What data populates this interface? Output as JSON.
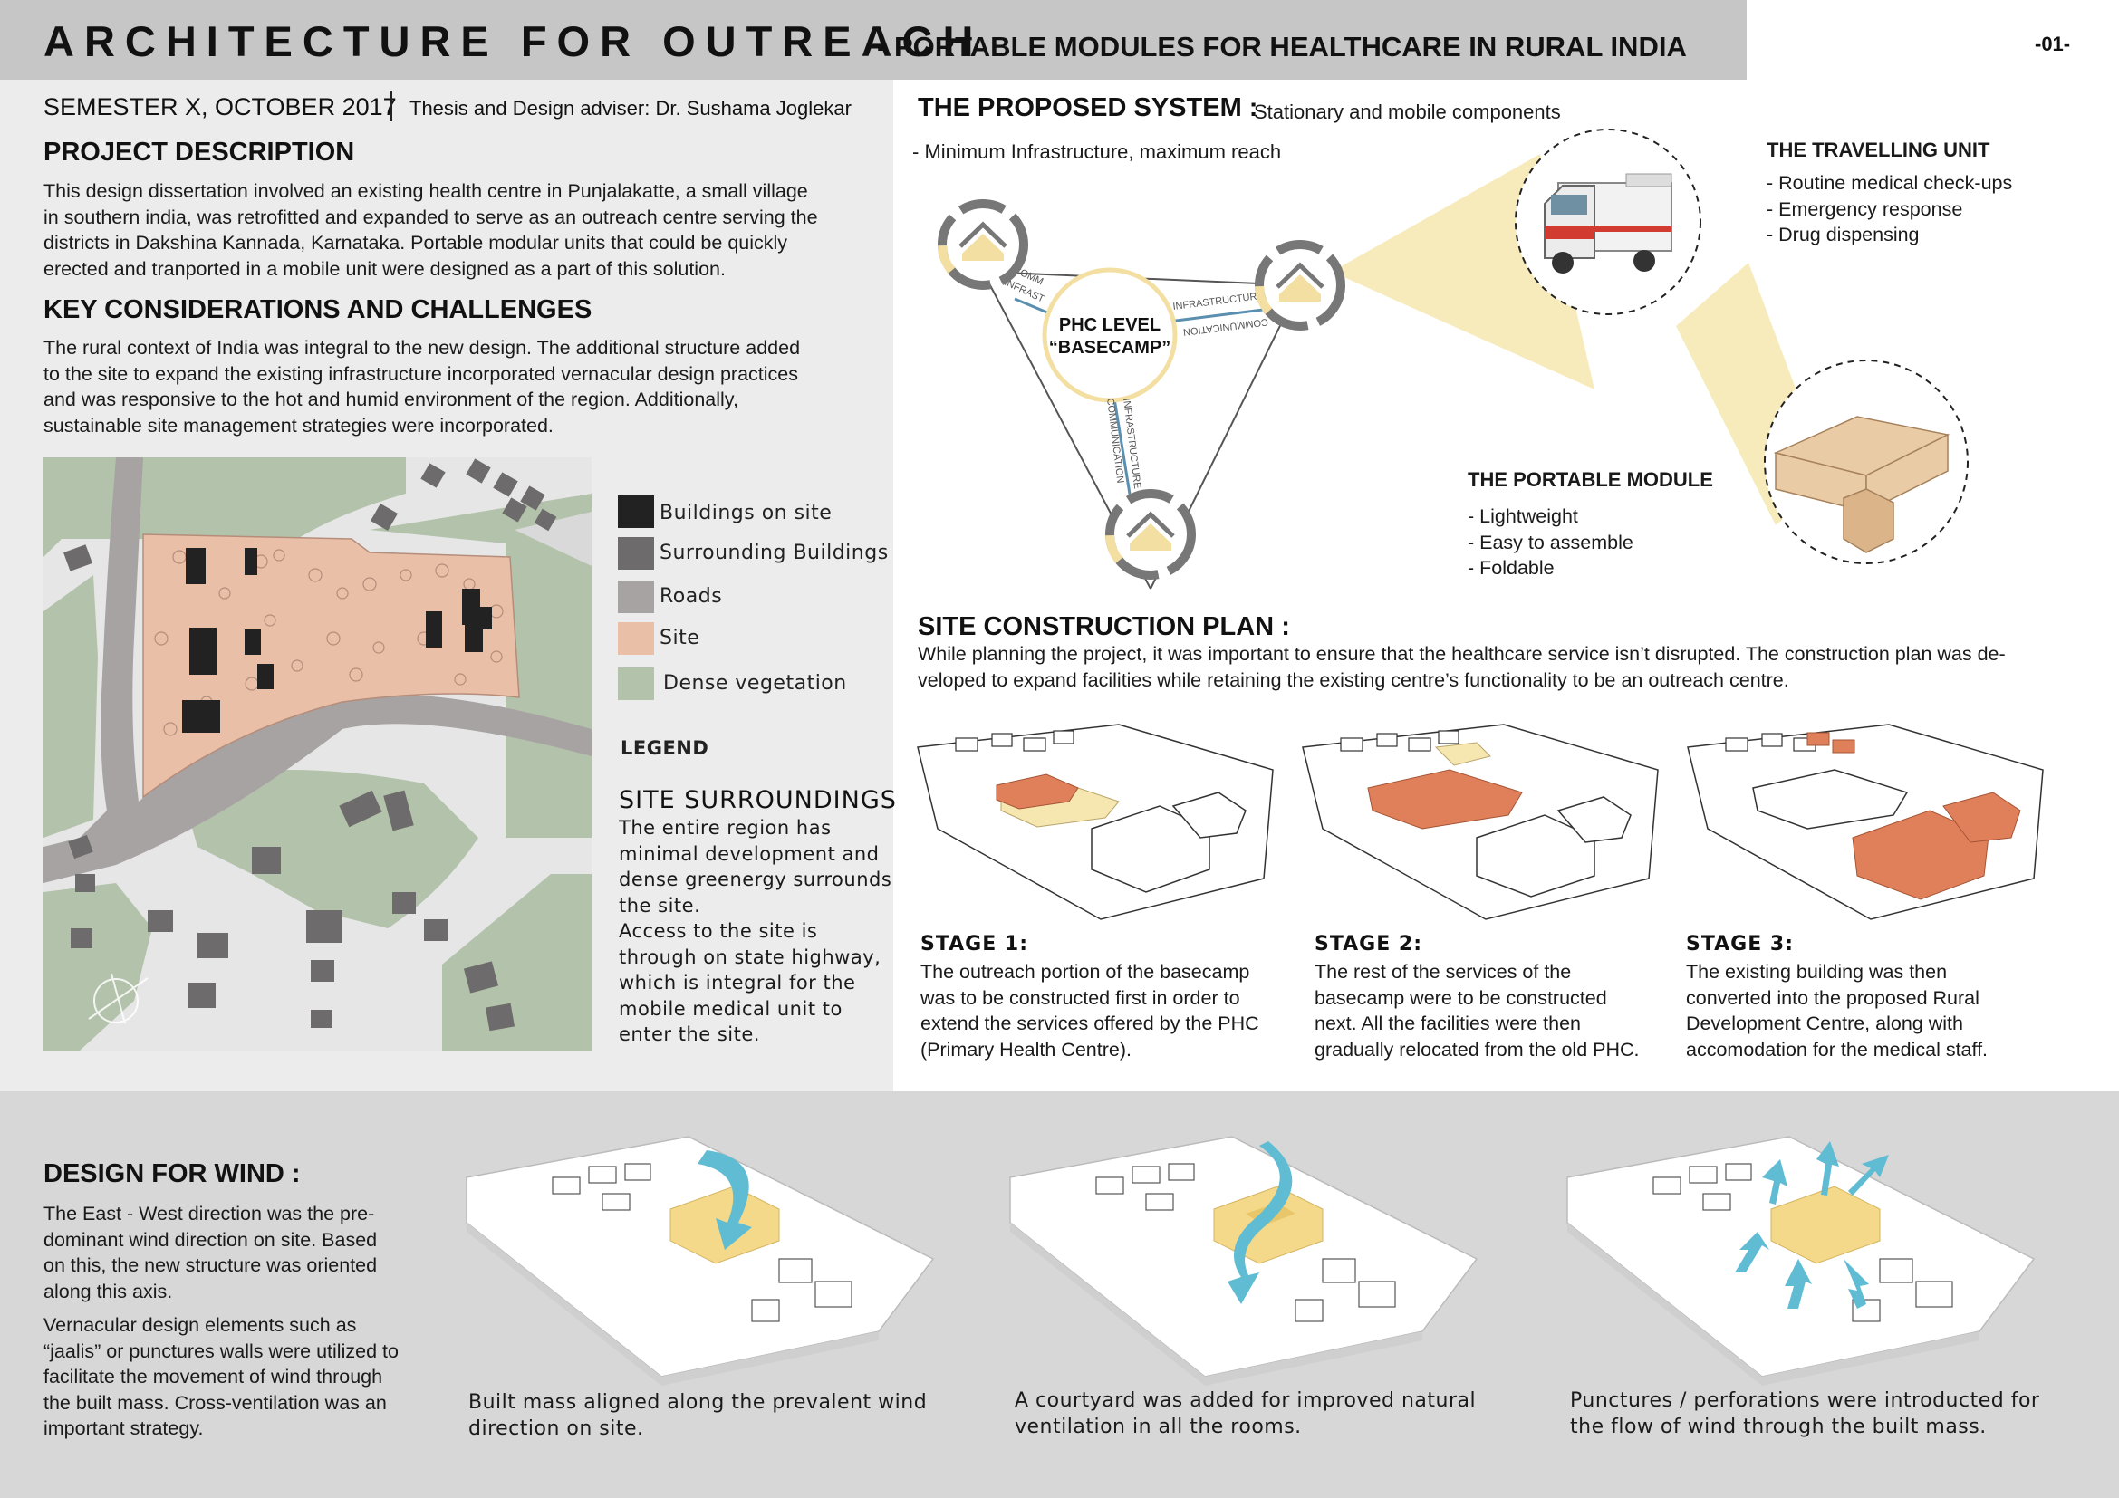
{
  "header": {
    "title_main": "ARCHITECTURE FOR OUTREACH",
    "title_dash": "-",
    "title_sub": "PORTABLE MODULES FOR HEALTHCARE IN RURAL INDIA",
    "page_number": "-01-"
  },
  "meta": {
    "semester": "SEMESTER X, OCTOBER 2017",
    "adviser": "Thesis and Design adviser: Dr. Sushama Joglekar"
  },
  "project_description": {
    "heading": "PROJECT DESCRIPTION",
    "lines": [
      "This design dissertation involved an existing health centre in Punjalakatte, a small village",
      "in southern india, was retrofitted and expanded to serve as an outreach centre serving the",
      "districts in Dakshina Kannada, Karnataka. Portable modular units that could be quickly",
      "erected and tranported in a mobile unit were designed as a part of this solution."
    ]
  },
  "key_considerations": {
    "heading": "KEY CONSIDERATIONS AND CHALLENGES",
    "lines": [
      "The rural context of India was integral to the new design. The additional structure added",
      "to the site to expand the existing infrastructure incorporated vernacular design practices",
      "and was responsive to the hot and humid environment of the region. Additionally,",
      "sustainable site management strategies were incorporated."
    ]
  },
  "legend": {
    "title": "LEGEND",
    "items": [
      {
        "label": "Buildings on site",
        "color": "#222222"
      },
      {
        "label": "Surrounding Buildings",
        "color": "#6d6b6b"
      },
      {
        "label": "Roads",
        "color": "#a8a3a3"
      },
      {
        "label": "Site",
        "color": "#e9bfa8"
      },
      {
        "label": "Dense vegetation",
        "color": "#b3c2aa"
      }
    ]
  },
  "site_surroundings": {
    "heading": "SITE SURROUNDINGS",
    "lines": [
      "The entire region has",
      "minimal development and",
      "dense greenergy surrounds",
      "the site.",
      "Access to the site is",
      "through on state highway,",
      "which is integral for the",
      "mobile medical unit to",
      "enter the site."
    ]
  },
  "proposed_system": {
    "heading": "THE PROPOSED SYSTEM",
    "colon": ":",
    "subheading": "Stationary and mobile components",
    "tagline": "- Minimum Infrastructure, maximum reach",
    "center_line1": "PHC LEVEL",
    "center_line2": "“BASECAMP”",
    "link_labels": {
      "comm": "COMM",
      "infrast": "INFRAST",
      "infrastructure": "INFRASTRUCTURE",
      "communication": "COMMUNICATION"
    },
    "travelling_unit": {
      "heading": "THE TRAVELLING UNIT",
      "items": [
        "- Routine medical check-ups",
        "- Emergency response",
        "- Drug dispensing"
      ]
    },
    "portable_module": {
      "heading": "THE PORTABLE MODULE",
      "items": [
        "- Lightweight",
        "- Easy to assemble",
        "- Foldable"
      ]
    }
  },
  "construction_plan": {
    "heading": "SITE CONSTRUCTION PLAN",
    "colon": ":",
    "lines": [
      "While planning the project, it was important to ensure that the healthcare service isn’t disrupted. The construction plan was de-",
      "veloped to expand facilities while retaining the existing centre’s functionality to be an outreach centre."
    ],
    "stages": [
      {
        "title": "STAGE 1:",
        "lines": [
          "The outreach portion of the basecamp",
          "was to be constructed first in order to",
          "extend the services offered by the PHC",
          "(Primary Health Centre)."
        ]
      },
      {
        "title": "STAGE 2:",
        "lines": [
          "The rest of the services of the",
          "basecamp were to be constructed",
          "next. All the facilities were then",
          "gradually relocated from the old PHC."
        ]
      },
      {
        "title": "STAGE 3:",
        "lines": [
          "The existing building was then",
          "converted into the proposed Rural",
          "Development Centre, along with",
          "accomodation for the medical staff."
        ]
      }
    ]
  },
  "design_for_wind": {
    "heading": "DESIGN FOR WIND",
    "colon": ":",
    "para1": [
      "The East - West direction was the pre-",
      "dominant wind direction on site.  Based",
      "on this, the new structure was oriented",
      "along this axis."
    ],
    "para2": [
      "Vernacular design elements such as",
      "“jaalis” or punctures walls were utilized to",
      "facilitate the movement of wind through",
      "the built mass. Cross-ventilation was an",
      "important strategy."
    ],
    "captions": [
      [
        "Built mass aligned along the prevalent wind",
        "direction on site."
      ],
      [
        "A courtyard was added for improved natural",
        "ventilation in all the rooms."
      ],
      [
        "Punctures / perforations were introducted for",
        "the flow of wind through the built mass."
      ]
    ]
  },
  "colors": {
    "title_band": "#c6c6c6",
    "left_panel": "#ececec",
    "bottom_panel": "#d7d7d7",
    "site": "#e9bfa8",
    "vegetation": "#b3c2aa",
    "new_built": "#e0805a",
    "wind_arrow": "#5fbcd3",
    "wind_block": "#f5d98a",
    "cone": "#f6e7b0"
  }
}
